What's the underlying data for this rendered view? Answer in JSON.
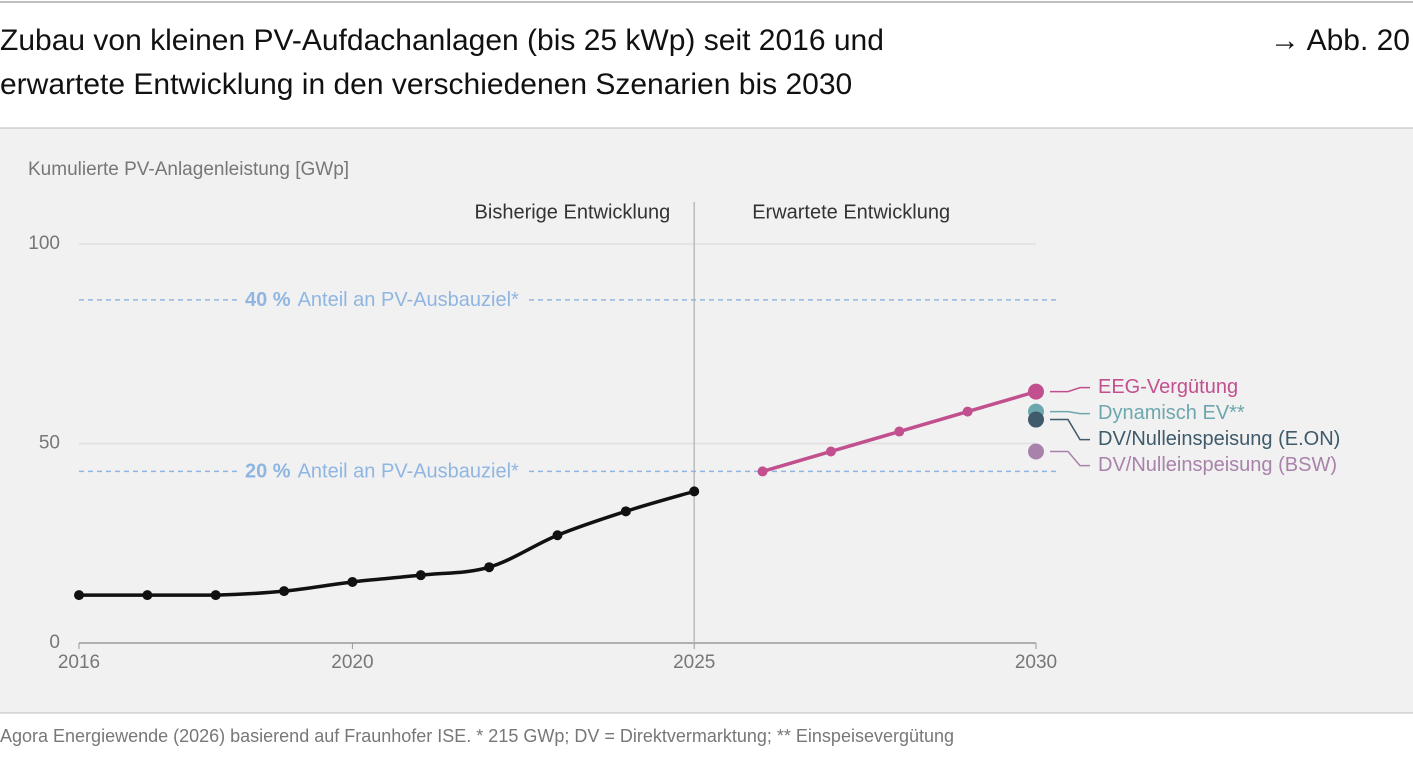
{
  "header": {
    "title_lines": [
      "Zubau von kleinen PV-Aufdachanlagen (bis 25 kWp) seit 2016 und",
      "erwartete Entwicklung in den verschiedenen Szenarien bis 2030"
    ],
    "figure_ref": "→ Abb. 20"
  },
  "chart_data": {
    "type": "line",
    "y_label": "Kumulierte PV-Anlagenleistung [GWp]",
    "annotations": [
      {
        "x": 2025,
        "left": "Bisherige Entwicklung",
        "right": "Erwartete Entwicklung"
      }
    ],
    "xlim": [
      2016,
      2030
    ],
    "xticks": [
      2016,
      2020,
      2025,
      2030
    ],
    "ylim": [
      0,
      100
    ],
    "yticks": [
      0,
      50,
      100
    ],
    "grid": true,
    "reference_lines": [
      {
        "value": 86,
        "label": "40 %",
        "text": "Anteil an PV-Ausbauziel*",
        "color": "#8fb6e2"
      },
      {
        "value": 43,
        "label": "20 %",
        "text": "Anteil an PV-Ausbauziel*",
        "color": "#8fb6e2"
      }
    ],
    "series": [
      {
        "color": "#111111",
        "smooth": true,
        "x": [
          2016,
          2017,
          2018,
          2019,
          2020,
          2021,
          2022,
          2023,
          2024,
          2025
        ],
        "values": [
          12,
          12,
          12,
          13,
          15.3,
          17,
          19,
          27,
          33,
          38
        ]
      },
      {
        "name": "EEG-Vergütung",
        "color": "#c2508e",
        "x": [
          2026,
          2027,
          2028,
          2029,
          2030
        ],
        "values": [
          43,
          48,
          53,
          58,
          63
        ]
      },
      {
        "name": "Dynamisch EV**",
        "color": "#6da7ae",
        "x": [
          2030
        ],
        "values": [
          58
        ]
      },
      {
        "name": "DV/Nulleinspeisung (E.ON)",
        "color": "#3e5a6b",
        "x": [
          2030
        ],
        "values": [
          56
        ]
      },
      {
        "name": "DV/Nulleinspeisung (BSW)",
        "color": "#a882aa",
        "x": [
          2030
        ],
        "values": [
          48
        ]
      }
    ]
  },
  "footer": {
    "source": "Agora Energiewende (2026) basierend auf Fraunhofer ISE. * 215 GWp; DV = Direktvermarktung; ** Einspeisevergütung"
  }
}
